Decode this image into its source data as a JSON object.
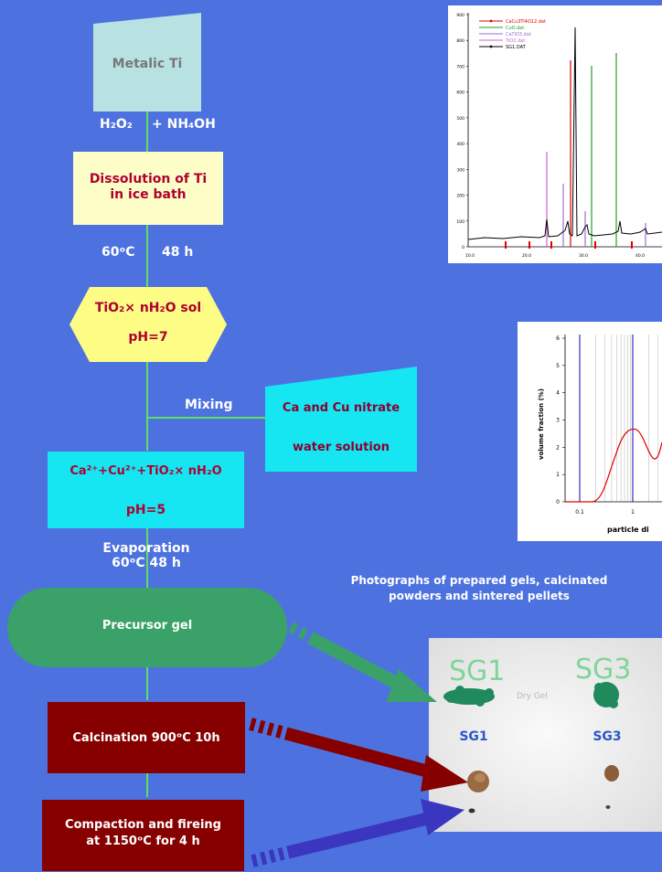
{
  "flow": {
    "metalic_ti": "Metalic Ti",
    "reagent_a": "H₂O₂",
    "reagent_b": "+ NH₄OH",
    "dissolution": [
      "Dissolution of Ti",
      "in ice bath"
    ],
    "cond_temp": "60ᵒC",
    "cond_time": "48 h",
    "sol_line1": "TiO₂× nH₂O sol",
    "sol_line2": "pH=7",
    "mixing": "Mixing",
    "nitrate_line1": "Ca and Cu nitrate",
    "nitrate_line2": "water solution",
    "mix_line1": "Ca²⁺+Cu²⁺+TiO₂× nH₂O",
    "mix_line2": "pH=5",
    "evaporation": [
      "Evaporation",
      "60ᵒC 48 h"
    ],
    "precursor": "Precursor gel",
    "calcination": "Calcination 900ᵒC 10h",
    "compaction": [
      "Compaction and fireing",
      "at 1150ᵒC for 4 h"
    ]
  },
  "photos": {
    "caption": [
      "Photographs of prepared gels, calcinated",
      "powders and sintered pellets"
    ],
    "label_sg1": "SG1",
    "label_sg3": "SG3",
    "handwritten_sg1": "SG1",
    "handwritten_sg3": "SG3",
    "pencil_note": "Dry Gel"
  },
  "xrd": {
    "legend": [
      "CaCu3Ti4O12.dat",
      "CuO.dat",
      "CaTiO3.dat",
      "TiO2.dat",
      "SG1.DAT"
    ],
    "legend_colors": [
      "#e00000",
      "#2a9a2a",
      "#9a70d0",
      "#d060d0",
      "#000000"
    ],
    "y_ticks": [
      "900",
      "800",
      "700",
      "600",
      "500",
      "400",
      "300",
      "200",
      "100",
      "0"
    ],
    "x_ticks": [
      "10.0",
      "20.0",
      "30.0",
      "40.0"
    ]
  },
  "psd": {
    "ylabel": "volume fraction (%)",
    "xlabel": "particle di",
    "y_ticks": [
      "6",
      "5",
      "4",
      "3",
      "2",
      "1",
      "0"
    ],
    "x_ticks": [
      "0.1",
      "1"
    ],
    "line_color": "#e00000"
  },
  "colors": {
    "background": "#4d72e0",
    "connector": "#5ee05e",
    "gel_green": "#3aa268",
    "maroon": "#860000",
    "navy_arrow": "#3b36c0",
    "cyan": "#15e6f2",
    "cream": "#fdfdc8",
    "light_teal": "#b8e2e2",
    "hex_yellow": "#fdfd86"
  }
}
